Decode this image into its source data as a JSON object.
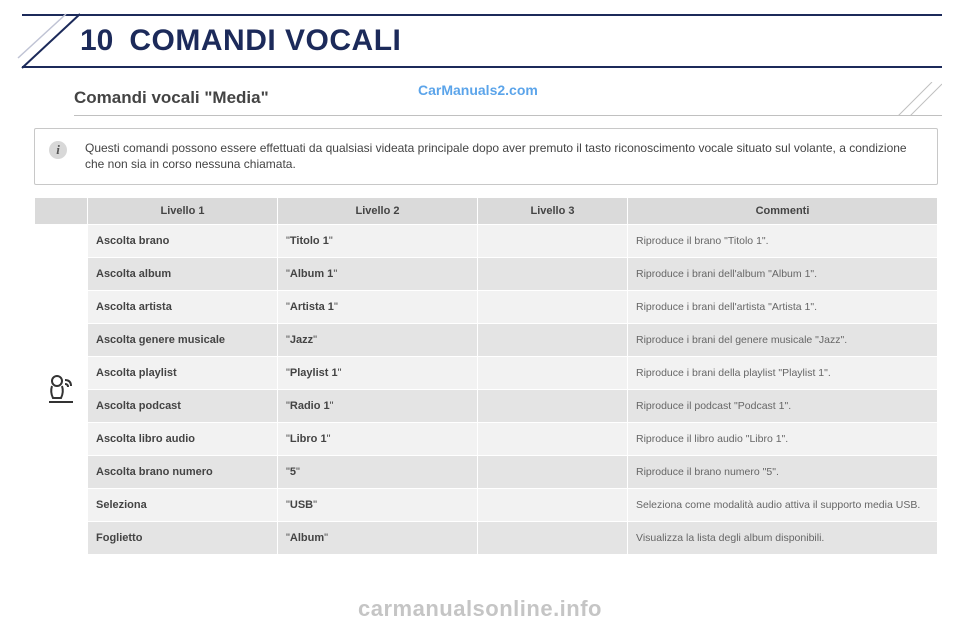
{
  "header": {
    "chapter_number": "10",
    "chapter_title": "COMANDI VOCALI",
    "border_color": "#1c2a5a"
  },
  "watermark_top": "CarManuals2.com",
  "subtitle": "Comandi vocali \"Media\"",
  "info": {
    "icon": "i",
    "text": "Questi comandi possono essere effettuati da qualsiasi videata principale dopo aver premuto il tasto riconoscimento vocale situato sul volante, a condizione che non sia in corso nessuna chiamata."
  },
  "table": {
    "headers": {
      "l1": "Livello 1",
      "l2": "Livello 2",
      "l3": "Livello 3",
      "comment": "Commenti"
    },
    "rows": [
      {
        "l1": "Ascolta brano",
        "l2": "Titolo 1",
        "l3": "",
        "comment": "Riproduce il brano \"Titolo 1\"."
      },
      {
        "l1": "Ascolta album",
        "l2": "Album 1",
        "l3": "",
        "comment": "Riproduce i brani dell'album \"Album 1\"."
      },
      {
        "l1": "Ascolta artista",
        "l2": "Artista 1",
        "l3": "",
        "comment": "Riproduce i brani dell'artista \"Artista 1\"."
      },
      {
        "l1": "Ascolta genere musicale",
        "l2": "Jazz",
        "l3": "",
        "comment": "Riproduce i brani del genere musicale \"Jazz\"."
      },
      {
        "l1": "Ascolta playlist",
        "l2": "Playlist 1",
        "l3": "",
        "comment": "Riproduce i brani della playlist \"Playlist 1\"."
      },
      {
        "l1": "Ascolta podcast",
        "l2": "Radio 1",
        "l3": "",
        "comment": "Riproduce il podcast \"Podcast 1\"."
      },
      {
        "l1": "Ascolta libro audio",
        "l2": "Libro 1",
        "l3": "",
        "comment": "Riproduce il libro audio \"Libro 1\"."
      },
      {
        "l1": "Ascolta brano numero",
        "l2": "5",
        "l3": "",
        "comment": "Riproduce il brano numero \"5\"."
      },
      {
        "l1": "Seleziona",
        "l2": "USB",
        "l3": "",
        "comment": "Seleziona come modalità audio attiva il supporto media USB."
      },
      {
        "l1": "Foglietto",
        "l2": "Album",
        "l3": "",
        "comment": "Visualizza la lista degli album disponibili."
      }
    ],
    "row_bg_light": "#f2f2f2",
    "row_bg_dark": "#e4e4e4",
    "header_bg": "#dadada"
  },
  "footer_watermark": "carmanualsonline.info",
  "page_number": ""
}
